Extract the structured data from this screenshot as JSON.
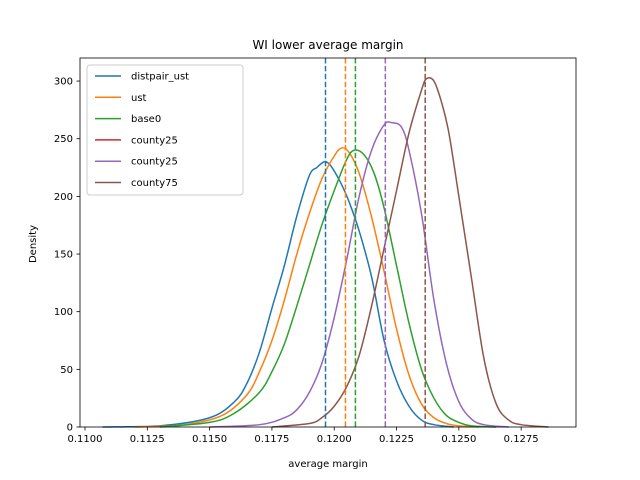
{
  "chart_data": {
    "type": "line",
    "title": "WI lower average margin",
    "xlabel": "average margin",
    "ylabel": "Density",
    "xlim": [
      0.1098,
      0.1297
    ],
    "ylim": [
      0,
      320
    ],
    "xticks": [
      0.11,
      0.1125,
      0.115,
      0.1175,
      0.12,
      0.1225,
      0.125,
      0.1275
    ],
    "xtick_labels": [
      "0.1100",
      "0.1125",
      "0.1150",
      "0.1175",
      "0.1200",
      "0.1225",
      "0.1250",
      "0.1275"
    ],
    "yticks": [
      0,
      50,
      100,
      150,
      200,
      250,
      300
    ],
    "ytick_labels": [
      "0",
      "50",
      "100",
      "150",
      "200",
      "250",
      "300"
    ],
    "legend_position": "top-left",
    "series": [
      {
        "name": "distpair_ust",
        "color": "#1f77b4",
        "mean": 0.11965,
        "x": [
          0.1107,
          0.113,
          0.115,
          0.116,
          0.1165,
          0.117,
          0.1175,
          0.118,
          0.1185,
          0.119,
          0.1193,
          0.1196,
          0.1198,
          0.12,
          0.1203,
          0.1206,
          0.121,
          0.1215,
          0.122,
          0.1225,
          0.123,
          0.1235,
          0.124,
          0.1248
        ],
        "y": [
          0,
          1,
          8,
          22,
          38,
          65,
          103,
          140,
          183,
          218,
          225,
          230,
          228,
          222,
          210,
          195,
          170,
          130,
          75,
          40,
          18,
          6,
          2,
          0
        ]
      },
      {
        "name": "ust",
        "color": "#ff7f0e",
        "mean": 0.12045,
        "x": [
          0.112,
          0.114,
          0.1155,
          0.1165,
          0.117,
          0.1175,
          0.118,
          0.1185,
          0.119,
          0.1195,
          0.12,
          0.1203,
          0.1206,
          0.121,
          0.1215,
          0.122,
          0.1225,
          0.123,
          0.1235,
          0.124,
          0.1245,
          0.125,
          0.1258
        ],
        "y": [
          0,
          2,
          10,
          28,
          48,
          75,
          110,
          150,
          185,
          215,
          235,
          242,
          238,
          220,
          182,
          135,
          85,
          45,
          20,
          8,
          3,
          1,
          0
        ]
      },
      {
        "name": "base0",
        "color": "#2ca02c",
        "mean": 0.12085,
        "x": [
          0.113,
          0.115,
          0.116,
          0.117,
          0.1175,
          0.118,
          0.1185,
          0.119,
          0.1195,
          0.12,
          0.1205,
          0.1208,
          0.1212,
          0.1216,
          0.122,
          0.1225,
          0.123,
          0.1235,
          0.124,
          0.1245,
          0.125,
          0.1255,
          0.1265
        ],
        "y": [
          0,
          4,
          12,
          30,
          48,
          72,
          105,
          140,
          175,
          205,
          232,
          240,
          236,
          220,
          190,
          140,
          90,
          50,
          25,
          10,
          4,
          1,
          0
        ]
      },
      {
        "name": "county25",
        "color": "#d62728",
        "mean": 0.12205,
        "x": [],
        "y": []
      },
      {
        "name": "county25",
        "color": "#9467bd",
        "mean": 0.12205,
        "x": [
          0.115,
          0.117,
          0.118,
          0.1185,
          0.119,
          0.1195,
          0.12,
          0.1205,
          0.121,
          0.1215,
          0.122,
          0.1223,
          0.1227,
          0.123,
          0.1235,
          0.124,
          0.1245,
          0.125,
          0.1255,
          0.126,
          0.127
        ],
        "y": [
          0,
          2,
          8,
          15,
          30,
          55,
          95,
          145,
          200,
          240,
          262,
          264,
          260,
          240,
          185,
          110,
          55,
          22,
          7,
          2,
          0
        ]
      },
      {
        "name": "county75",
        "color": "#8c564b",
        "mean": 0.12365,
        "x": [
          0.1175,
          0.119,
          0.1195,
          0.12,
          0.1205,
          0.121,
          0.1215,
          0.122,
          0.1225,
          0.123,
          0.1235,
          0.1237,
          0.124,
          0.1243,
          0.1246,
          0.125,
          0.1255,
          0.126,
          0.1265,
          0.127,
          0.1275,
          0.1286
        ],
        "y": [
          0,
          3,
          8,
          18,
          35,
          62,
          105,
          155,
          205,
          255,
          292,
          302,
          300,
          282,
          255,
          200,
          130,
          60,
          20,
          6,
          2,
          0
        ]
      }
    ]
  }
}
